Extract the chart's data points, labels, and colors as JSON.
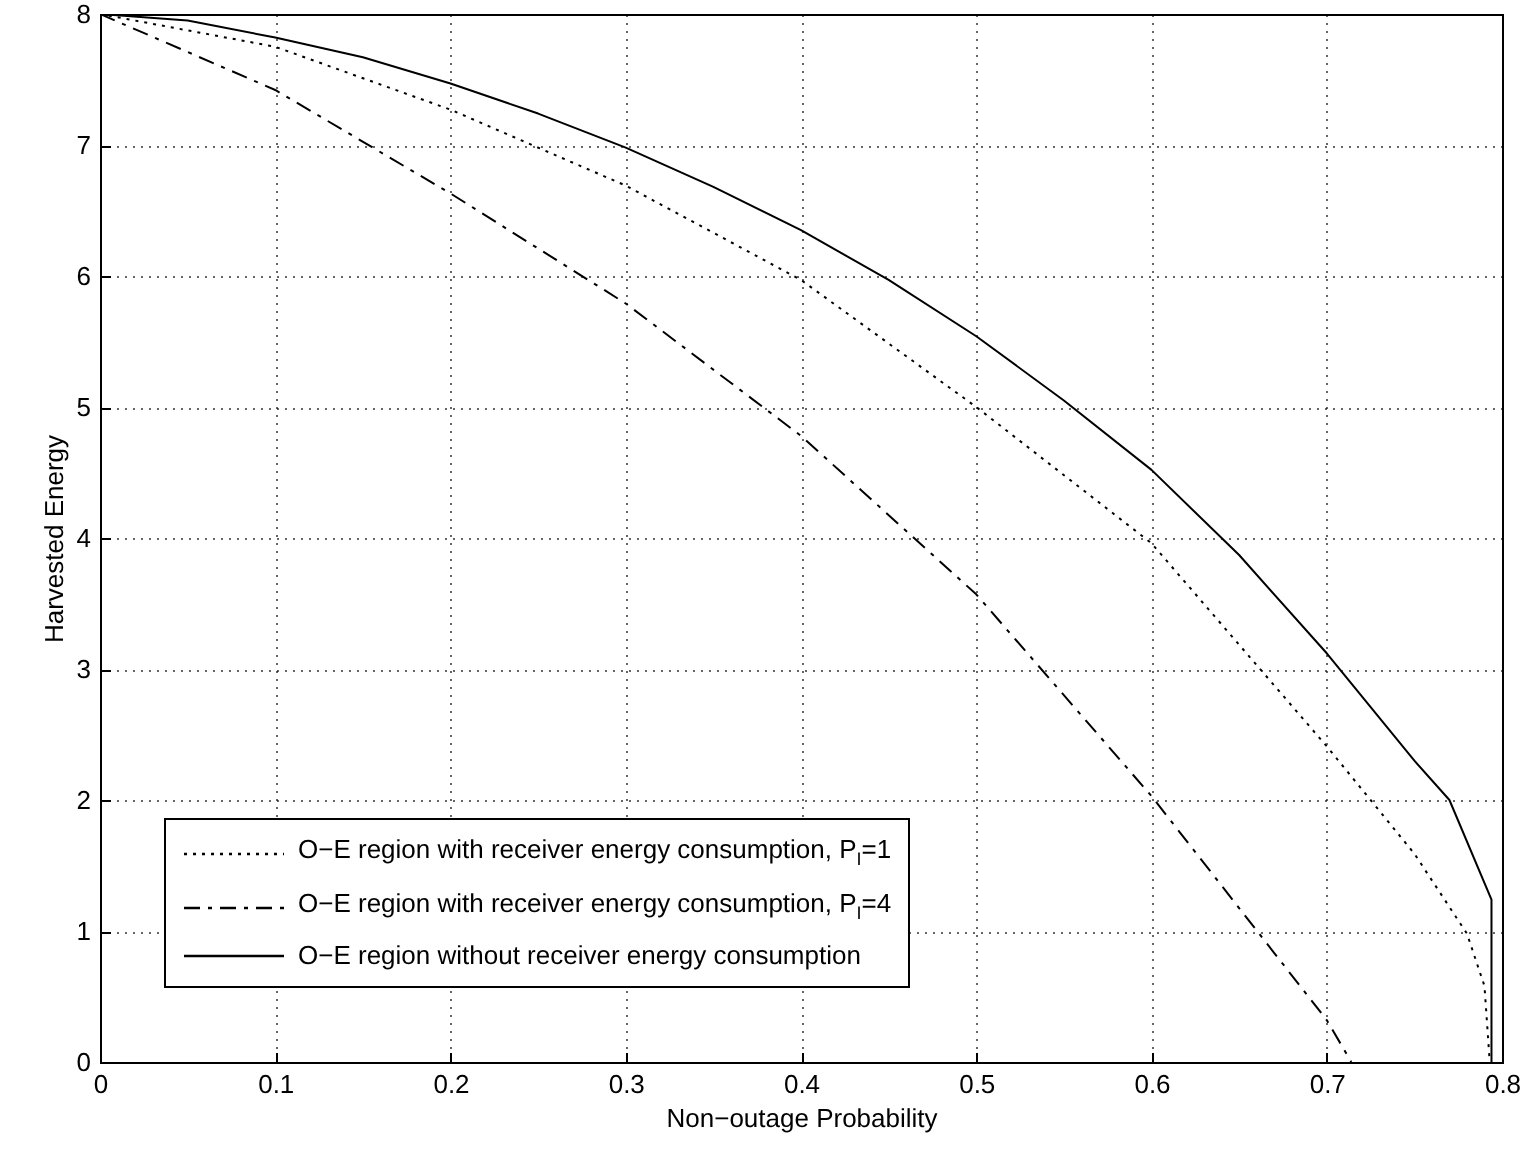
{
  "chart_data": {
    "type": "line",
    "xlabel": "Non−outage Probability",
    "ylabel": "Harvested Energy",
    "xlim": [
      0,
      0.8
    ],
    "xticks": [
      0,
      0.1,
      0.2,
      0.3,
      0.4,
      0.5,
      0.6,
      0.7,
      0.8
    ],
    "ylim": [
      0,
      8
    ],
    "yticks": [
      0,
      1,
      2,
      3,
      4,
      5,
      6,
      7,
      8
    ],
    "grid": true,
    "legend": "bottom left",
    "marker": "none",
    "series": [
      {
        "name": "O−E region with receiver energy consumption, P$_{I}$=1",
        "color": "#000000",
        "line_style": "dotted",
        "x": [
          0,
          0.1,
          0.2,
          0.3,
          0.4,
          0.5,
          0.6,
          0.7,
          0.75,
          0.78,
          0.79,
          0.793
        ],
        "values": [
          8,
          7.75,
          7.27,
          6.69,
          5.97,
          5.0,
          3.96,
          2.41,
          1.59,
          0.98,
          0.58,
          0
        ]
      },
      {
        "name": "O−E region with receiver energy consumption, P$_{I}$=4",
        "color": "#000000",
        "line_style": "dashed",
        "x": [
          0,
          0.1,
          0.2,
          0.3,
          0.4,
          0.5,
          0.6,
          0.7,
          0.714
        ],
        "values": [
          8,
          7.42,
          6.63,
          5.79,
          4.78,
          3.57,
          2.03,
          0.32,
          0
        ]
      },
      {
        "name": "O−E region without receiver energy consumption",
        "color": "#000000",
        "line_style": "solid",
        "x": [
          0,
          0.05,
          0.1,
          0.15,
          0.2,
          0.25,
          0.3,
          0.35,
          0.4,
          0.45,
          0.5,
          0.55,
          0.6,
          0.65,
          0.7,
          0.75,
          0.77,
          0.794,
          0.794
        ],
        "values": [
          8,
          7.95,
          7.82,
          7.67,
          7.47,
          7.24,
          6.98,
          6.68,
          6.35,
          5.97,
          5.54,
          5.05,
          4.52,
          3.87,
          3.12,
          2.3,
          2.0,
          1.24,
          0
        ]
      }
    ]
  }
}
